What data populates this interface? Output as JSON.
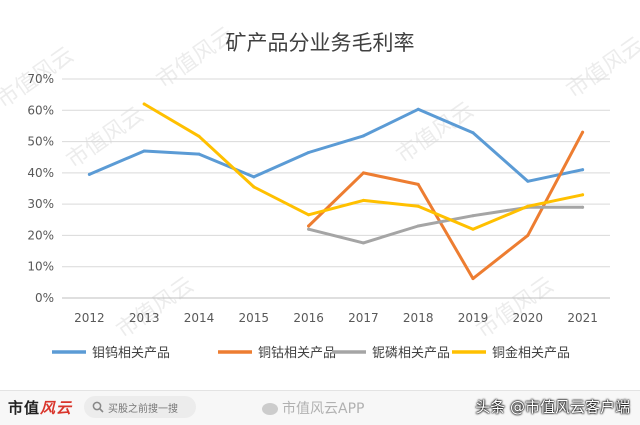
{
  "chart_data": {
    "type": "line",
    "title": "矿产品分业务毛利率",
    "categories": [
      "2012",
      "2013",
      "2014",
      "2015",
      "2016",
      "2017",
      "2018",
      "2019",
      "2020",
      "2021"
    ],
    "y_ticks": [
      "0%",
      "10%",
      "20%",
      "30%",
      "40%",
      "50%",
      "60%",
      "70%"
    ],
    "ylim": [
      0,
      70
    ],
    "grid": true,
    "legend_position": "bottom",
    "series": [
      {
        "name": "钼钨相关产品",
        "color": "#5b9bd5",
        "values": [
          39.5,
          47,
          46,
          38.7,
          46.5,
          51.8,
          60.3,
          52.8,
          37.3,
          41
        ]
      },
      {
        "name": "铜钴相关产品",
        "color": "#ed7d31",
        "values": [
          null,
          null,
          null,
          null,
          23,
          40,
          36.3,
          6.2,
          20,
          53
        ]
      },
      {
        "name": "铌磷相关产品",
        "color": "#a5a5a5",
        "values": [
          null,
          null,
          null,
          null,
          22,
          17.6,
          23,
          26.3,
          29,
          29
        ]
      },
      {
        "name": "铜金相关产品",
        "color": "#ffc000",
        "values": [
          null,
          62,
          51.7,
          35.5,
          26.6,
          31.2,
          29.3,
          22,
          29.3,
          33
        ]
      }
    ]
  },
  "watermark_text": "市值风云",
  "footer": {
    "brand_main": "市值",
    "brand_accent": "风云",
    "search_placeholder": "买股之前搜一搜",
    "app_watermark": "市值风云APP",
    "client_credit": "头条 @市值风云客户端"
  }
}
